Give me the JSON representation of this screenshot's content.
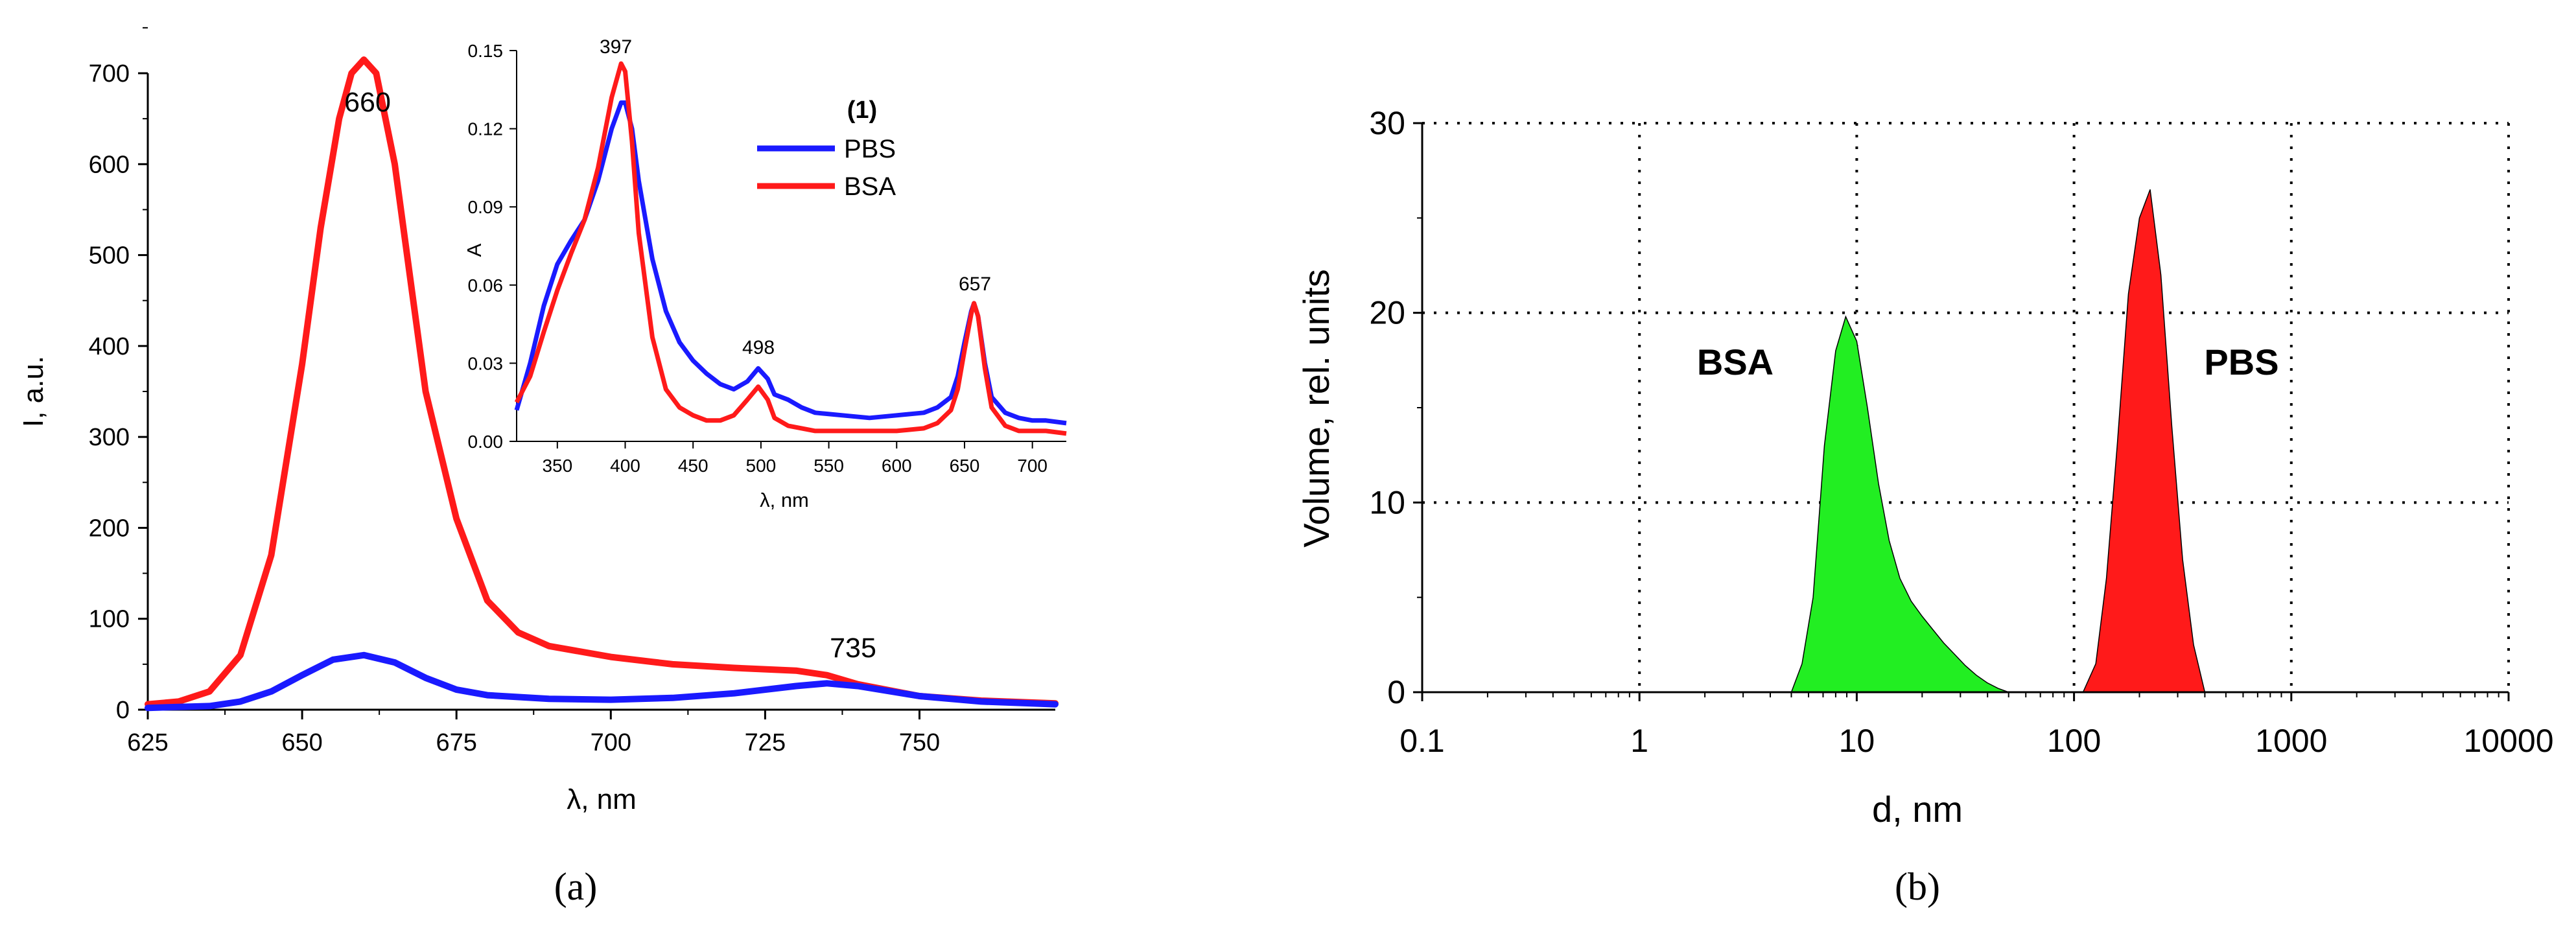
{
  "figure": {
    "caption_a": "(a)",
    "caption_b": "(b)"
  },
  "colors": {
    "pbs": "#1a1aff",
    "bsa": "#ff1a1a",
    "bsa_fill": "#22ee22",
    "pbs_fill": "#ff1a1a",
    "axis": "#000000"
  },
  "chart_data": [
    {
      "id": "a-main",
      "type": "line",
      "xlabel": "λ, nm",
      "ylabel": "I, a.u.",
      "xlim": [
        625,
        772
      ],
      "ylim": [
        -10,
        750
      ],
      "xticks": [
        625,
        650,
        675,
        700,
        725,
        750
      ],
      "yticks": [
        0,
        100,
        200,
        300,
        400,
        500,
        600,
        700
      ],
      "annotations": [
        {
          "text": "660",
          "x": 660,
          "y": 715
        },
        {
          "text": "735",
          "x": 735,
          "y": 37
        }
      ],
      "series": [
        {
          "name": "BSA",
          "color": "bsa",
          "x": [
            625,
            630,
            635,
            640,
            645,
            650,
            653,
            656,
            658,
            660,
            662,
            665,
            668,
            670,
            675,
            680,
            685,
            690,
            700,
            710,
            720,
            730,
            735,
            740,
            750,
            760,
            772
          ],
          "y": [
            6,
            9,
            20,
            60,
            170,
            380,
            530,
            650,
            700,
            715,
            700,
            600,
            450,
            350,
            210,
            120,
            85,
            70,
            58,
            50,
            46,
            43,
            38,
            28,
            15,
            10,
            7
          ]
        },
        {
          "name": "PBS",
          "color": "pbs",
          "x": [
            625,
            635,
            640,
            645,
            650,
            655,
            660,
            665,
            670,
            675,
            680,
            690,
            700,
            710,
            720,
            730,
            735,
            740,
            750,
            760,
            772
          ],
          "y": [
            2,
            4,
            9,
            20,
            38,
            55,
            60,
            52,
            35,
            22,
            16,
            12,
            11,
            13,
            18,
            26,
            29,
            26,
            15,
            9,
            6
          ]
        }
      ]
    },
    {
      "id": "a-inset",
      "type": "line",
      "xlabel": "λ, nm",
      "ylabel": "A",
      "xlim": [
        320,
        725
      ],
      "ylim": [
        0,
        0.15
      ],
      "xticks": [
        350,
        400,
        450,
        500,
        550,
        600,
        650,
        700
      ],
      "yticks": [
        0.0,
        0.03,
        0.06,
        0.09,
        0.12,
        0.15
      ],
      "ytick_labels": [
        "0.00",
        "0.03",
        "0.06",
        "0.09",
        "0.12",
        "0.15"
      ],
      "legend": {
        "title": "(1)",
        "entries": [
          "PBS",
          "BSA"
        ],
        "placement": "top-right"
      },
      "annotations": [
        {
          "text": "397",
          "x": 397,
          "y": 0.145
        },
        {
          "text": "498",
          "x": 498,
          "y": 0.028
        },
        {
          "text": "657",
          "x": 657,
          "y": 0.053
        }
      ],
      "series": [
        {
          "name": "PBS",
          "color": "pbs",
          "x": [
            320,
            330,
            340,
            350,
            360,
            370,
            380,
            390,
            397,
            400,
            405,
            410,
            420,
            430,
            440,
            450,
            460,
            470,
            480,
            490,
            498,
            505,
            510,
            520,
            530,
            540,
            560,
            580,
            600,
            620,
            630,
            640,
            645,
            650,
            655,
            657,
            660,
            665,
            670,
            680,
            690,
            700,
            710,
            725
          ],
          "y": [
            0.012,
            0.03,
            0.052,
            0.068,
            0.077,
            0.085,
            0.1,
            0.12,
            0.13,
            0.13,
            0.12,
            0.1,
            0.07,
            0.05,
            0.038,
            0.031,
            0.026,
            0.022,
            0.02,
            0.023,
            0.028,
            0.024,
            0.018,
            0.016,
            0.013,
            0.011,
            0.01,
            0.009,
            0.01,
            0.011,
            0.013,
            0.017,
            0.025,
            0.038,
            0.05,
            0.053,
            0.048,
            0.03,
            0.017,
            0.011,
            0.009,
            0.008,
            0.008,
            0.007
          ]
        },
        {
          "name": "BSA",
          "color": "bsa",
          "x": [
            320,
            330,
            340,
            350,
            360,
            370,
            380,
            390,
            397,
            400,
            405,
            410,
            420,
            430,
            440,
            450,
            460,
            470,
            480,
            490,
            498,
            505,
            510,
            520,
            530,
            540,
            560,
            580,
            600,
            620,
            630,
            640,
            645,
            650,
            655,
            657,
            660,
            665,
            670,
            680,
            690,
            700,
            710,
            725
          ],
          "y": [
            0.015,
            0.025,
            0.042,
            0.058,
            0.072,
            0.085,
            0.105,
            0.132,
            0.145,
            0.142,
            0.115,
            0.08,
            0.04,
            0.02,
            0.013,
            0.01,
            0.008,
            0.008,
            0.01,
            0.016,
            0.021,
            0.016,
            0.009,
            0.006,
            0.005,
            0.004,
            0.004,
            0.004,
            0.004,
            0.005,
            0.007,
            0.012,
            0.02,
            0.035,
            0.049,
            0.053,
            0.048,
            0.028,
            0.013,
            0.006,
            0.004,
            0.004,
            0.004,
            0.003
          ]
        }
      ]
    },
    {
      "id": "b",
      "type": "area",
      "xlabel": "d, nm",
      "ylabel": "Volume, rel. units",
      "xscale": "log",
      "xlim": [
        0.1,
        10000
      ],
      "ylim": [
        0,
        30
      ],
      "xticks": [
        0.1,
        1,
        10,
        100,
        1000,
        10000
      ],
      "xtick_labels": [
        "0.1",
        "1",
        "10",
        "100",
        "1000",
        "10000"
      ],
      "yticks": [
        0,
        10,
        20,
        30
      ],
      "grid": true,
      "annotations": [
        {
          "text": "BSA",
          "x": 3.5,
          "y": 17
        },
        {
          "text": "PBS",
          "x": 700,
          "y": 17
        }
      ],
      "series": [
        {
          "name": "BSA",
          "color": "bsa_fill",
          "x": [
            5,
            5.6,
            6.3,
            7.1,
            8,
            8.9,
            10,
            11.2,
            12.6,
            14.1,
            15.8,
            17.8,
            20,
            22.4,
            25.1,
            28.2,
            31.6,
            35.5,
            39.8,
            44.7,
            50
          ],
          "y": [
            0,
            1.5,
            5,
            13,
            18,
            19.8,
            18.5,
            15,
            11,
            8,
            6,
            4.8,
            4,
            3.3,
            2.6,
            2,
            1.4,
            0.9,
            0.5,
            0.2,
            0
          ]
        },
        {
          "name": "PBS",
          "color": "pbs_fill",
          "x": [
            110,
            126,
            141,
            158,
            178,
            200,
            224,
            251,
            282,
            316,
            355,
            400
          ],
          "y": [
            0,
            1.5,
            6,
            13,
            21,
            25,
            26.5,
            22,
            14,
            7,
            2.5,
            0
          ]
        }
      ]
    }
  ]
}
